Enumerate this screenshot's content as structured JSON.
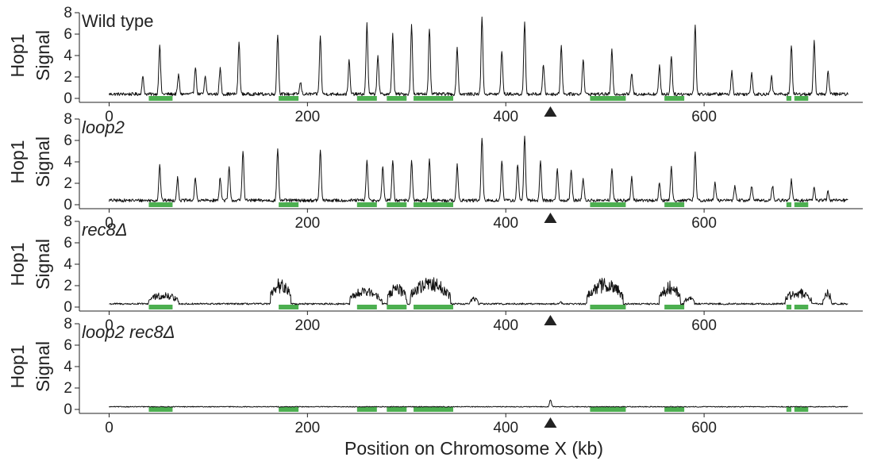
{
  "chart_data": {
    "type": "line",
    "xlabel": "Position on Chromosome X (kb)",
    "ylabel_line1": "Hop1",
    "ylabel_line2": "Signal",
    "xlim": [
      -30,
      760
    ],
    "xticks": [
      0,
      200,
      400,
      600
    ],
    "ylim": [
      0,
      8
    ],
    "yticks": [
      0,
      2,
      4,
      6,
      8
    ],
    "chromosome_length_kb": 745,
    "centromere_kb": 445,
    "highlight_color": "#4caf50",
    "line_color": "#111111",
    "highlight_regions": [
      [
        40,
        64
      ],
      [
        171,
        191
      ],
      [
        250,
        270
      ],
      [
        280,
        300
      ],
      [
        307,
        347
      ],
      [
        485,
        521
      ],
      [
        560,
        580
      ],
      [
        683,
        688
      ],
      [
        691,
        705
      ]
    ],
    "series": [
      {
        "title": "Wild type",
        "italic": false,
        "baseline": 0.4,
        "noise": 0.15,
        "peaks": [
          [
            34,
            2.0
          ],
          [
            51,
            5.0
          ],
          [
            70,
            2.2
          ],
          [
            87,
            3.0
          ],
          [
            97,
            2.0
          ],
          [
            112,
            2.8
          ],
          [
            131,
            5.2
          ],
          [
            170,
            6.0
          ],
          [
            193,
            1.5
          ],
          [
            213,
            5.8
          ],
          [
            242,
            3.5
          ],
          [
            260,
            7.0
          ],
          [
            271,
            4.0
          ],
          [
            286,
            6.0
          ],
          [
            305,
            6.8
          ],
          [
            323,
            6.6
          ],
          [
            351,
            4.8
          ],
          [
            376,
            7.6
          ],
          [
            396,
            4.5
          ],
          [
            419,
            7.0
          ],
          [
            438,
            3.2
          ],
          [
            456,
            5.0
          ],
          [
            478,
            3.7
          ],
          [
            507,
            4.5
          ],
          [
            527,
            2.3
          ],
          [
            555,
            3.0
          ],
          [
            567,
            4.0
          ],
          [
            591,
            6.8
          ],
          [
            628,
            2.5
          ],
          [
            648,
            2.4
          ],
          [
            668,
            2.0
          ],
          [
            688,
            5.0
          ],
          [
            711,
            5.3
          ],
          [
            725,
            2.5
          ]
        ],
        "blocks": []
      },
      {
        "title": "loop2",
        "italic": true,
        "baseline": 0.4,
        "noise": 0.15,
        "peaks": [
          [
            51,
            3.7
          ],
          [
            69,
            2.5
          ],
          [
            87,
            2.5
          ],
          [
            112,
            2.6
          ],
          [
            121,
            3.5
          ],
          [
            135,
            5.0
          ],
          [
            170,
            5.2
          ],
          [
            213,
            5.1
          ],
          [
            260,
            4.1
          ],
          [
            276,
            3.6
          ],
          [
            286,
            4.2
          ],
          [
            305,
            4.0
          ],
          [
            323,
            4.3
          ],
          [
            351,
            3.7
          ],
          [
            376,
            6.2
          ],
          [
            396,
            4.2
          ],
          [
            412,
            3.8
          ],
          [
            419,
            6.4
          ],
          [
            435,
            4.0
          ],
          [
            452,
            3.3
          ],
          [
            466,
            3.3
          ],
          [
            478,
            2.5
          ],
          [
            507,
            3.4
          ],
          [
            527,
            2.6
          ],
          [
            555,
            2.0
          ],
          [
            567,
            3.5
          ],
          [
            591,
            4.9
          ],
          [
            611,
            2.0
          ],
          [
            631,
            1.8
          ],
          [
            648,
            1.8
          ],
          [
            669,
            1.8
          ],
          [
            688,
            2.3
          ],
          [
            711,
            1.6
          ],
          [
            725,
            1.2
          ]
        ],
        "blocks": []
      },
      {
        "title": "rec8Δ",
        "italic": true,
        "baseline": 0.3,
        "noise": 0.08,
        "peaks": [
          [
            455,
            0.5
          ]
        ],
        "blocks": [
          [
            40,
            70,
            1.0
          ],
          [
            163,
            183,
            2.2
          ],
          [
            243,
            275,
            1.4
          ],
          [
            281,
            300,
            1.8
          ],
          [
            304,
            344,
            2.3
          ],
          [
            364,
            372,
            0.6
          ],
          [
            482,
            518,
            2.2
          ],
          [
            555,
            576,
            1.9
          ],
          [
            580,
            590,
            0.7
          ],
          [
            682,
            708,
            1.3
          ],
          [
            720,
            728,
            1.2
          ]
        ]
      },
      {
        "title": "loop2 rec8Δ",
        "italic": true,
        "baseline": 0.25,
        "noise": 0.04,
        "peaks": [
          [
            445,
            0.9
          ]
        ],
        "blocks": []
      }
    ]
  }
}
